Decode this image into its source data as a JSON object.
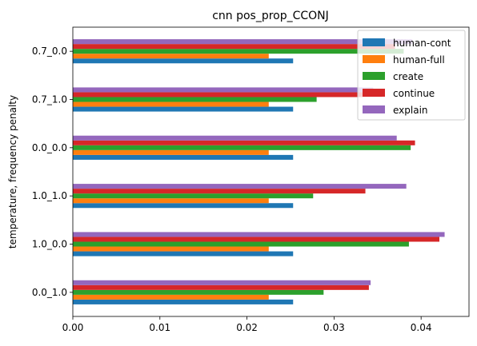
{
  "chart_data": {
    "type": "bar",
    "orientation": "horizontal",
    "title": "cnn pos_prop_CCONJ",
    "xlabel": "",
    "ylabel": "temperature, frequency penalty",
    "xlim": [
      0,
      0.0455
    ],
    "xticks": [
      "0.00",
      "0.01",
      "0.02",
      "0.03",
      "0.04"
    ],
    "xtick_values": [
      0,
      0.01,
      0.02,
      0.03,
      0.04
    ],
    "categories": [
      "0.0_1.0",
      "1.0_0.0",
      "1.0_1.0",
      "0.0_0.0",
      "0.7_1.0",
      "0.7_0.0"
    ],
    "series": [
      {
        "name": "human-cont",
        "color": "#1f77b4",
        "values": [
          0.0253,
          0.0253,
          0.0253,
          0.0253,
          0.0253,
          0.0253
        ]
      },
      {
        "name": "human-full",
        "color": "#ff7f0e",
        "values": [
          0.0225,
          0.0225,
          0.0225,
          0.0225,
          0.0225,
          0.0225
        ]
      },
      {
        "name": "create",
        "color": "#2ca02c",
        "values": [
          0.0288,
          0.0386,
          0.0276,
          0.0388,
          0.028,
          0.038
        ]
      },
      {
        "name": "continue",
        "color": "#d62728",
        "values": [
          0.034,
          0.0421,
          0.0336,
          0.0393,
          0.0355,
          0.037
        ]
      },
      {
        "name": "explain",
        "color": "#9467bd",
        "values": [
          0.0342,
          0.0427,
          0.0383,
          0.0372,
          0.0345,
          0.039
        ]
      }
    ],
    "legend_position": "top-right",
    "grid": false
  }
}
